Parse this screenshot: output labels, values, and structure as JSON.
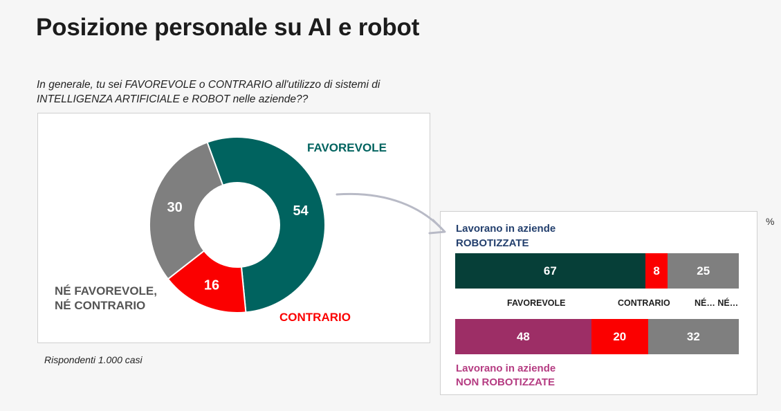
{
  "title": "Posizione personale su AI e robot",
  "question": "In generale, tu sei FAVOREVOLE o CONTRARIO all'utilizzo di sistemi di INTELLIGENZA ARTIFICIALE e ROBOT nelle aziende??",
  "note": "Rispondenti 1.000 casi",
  "unit": "%",
  "colors": {
    "favorevole": "#00635f",
    "contrario": "#fb0000",
    "neutral": "#7f7f7f",
    "robotized_bar": "#063f38",
    "non_robotized_bar": "#9d2e66",
    "robotized_label": "#24406e",
    "non_robotized_label": "#b53c82"
  },
  "chart_data": [
    {
      "type": "pie",
      "title": "",
      "categories": [
        "FAVOREVOLE",
        "CONTRARIO",
        "NÉ FAVOREVOLE, NÉ CONTRARIO"
      ],
      "values": [
        54,
        16,
        30
      ],
      "legend_lines": {
        "favorevole": "FAVOREVOLE",
        "contrario": "CONTRARIO",
        "neutral_1": "NÉ FAVOREVOLE,",
        "neutral_2": "NÉ CONTRARIO"
      }
    },
    {
      "type": "bar",
      "orientation": "horizontal-stacked",
      "categories": [
        "FAVOREVOLE",
        "CONTRARIO",
        "NÉ… NÉ…"
      ],
      "series": [
        {
          "group_line1": "Lavorano in aziende",
          "group_line2": "ROBOTIZZATE",
          "values": [
            67,
            8,
            25
          ]
        },
        {
          "group_line1": "Lavorano in aziende",
          "group_line2": "NON ROBOTIZZATE",
          "values": [
            48,
            20,
            32
          ]
        }
      ]
    }
  ]
}
